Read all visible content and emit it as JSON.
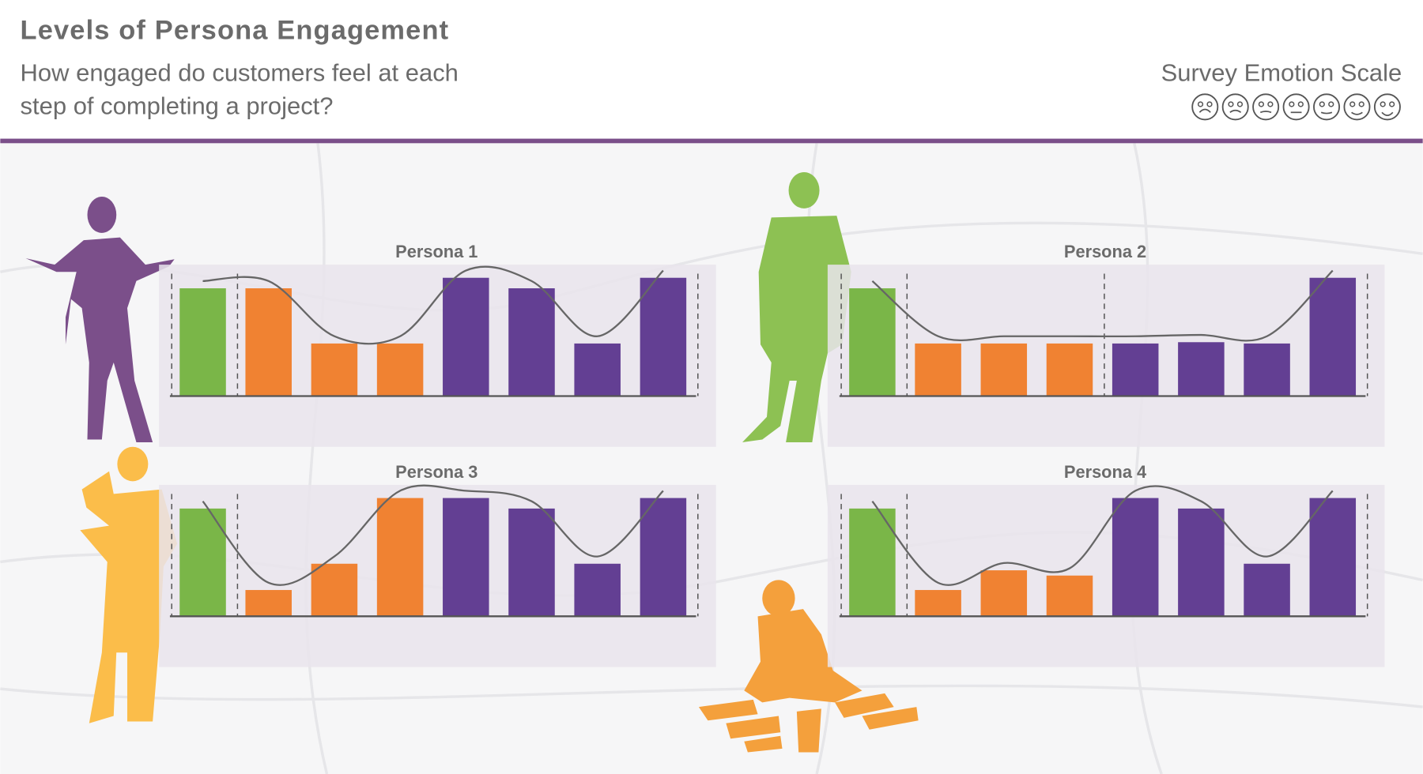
{
  "title": "Levels of Persona Engagement",
  "subtitle": [
    "How engaged do customers feel at each",
    "step of completing a project?"
  ],
  "scale_title": "Survey Emotion Scale",
  "chart_data": [
    {
      "type": "bar",
      "title": "Persona 1",
      "values": [
        8.2,
        8.2,
        4,
        4,
        9,
        8.2,
        4,
        9
      ],
      "colors": [
        "#7ab648",
        "#f08232",
        "#f08232",
        "#f08232",
        "#633f93",
        "#633f93",
        "#633f93",
        "#633f93"
      ],
      "ylim": [
        0,
        10
      ],
      "dividers": [
        0,
        1,
        8
      ]
    },
    {
      "type": "bar",
      "title": "Persona 2",
      "values": [
        8.2,
        4,
        4,
        4,
        4,
        4.1,
        4,
        9
      ],
      "colors": [
        "#7ab648",
        "#f08232",
        "#f08232",
        "#f08232",
        "#633f93",
        "#633f93",
        "#633f93",
        "#633f93"
      ],
      "ylim": [
        0,
        10
      ],
      "dividers": [
        0,
        1,
        4,
        8
      ]
    },
    {
      "type": "bar",
      "title": "Persona 3",
      "values": [
        8.2,
        2,
        4,
        9,
        9,
        8.2,
        4,
        9
      ],
      "colors": [
        "#7ab648",
        "#f08232",
        "#f08232",
        "#f08232",
        "#633f93",
        "#633f93",
        "#633f93",
        "#633f93"
      ],
      "ylim": [
        0,
        10
      ],
      "dividers": [
        0,
        1,
        8
      ]
    },
    {
      "type": "bar",
      "title": "Persona 4",
      "values": [
        8.2,
        2,
        3.5,
        3.1,
        9,
        8.2,
        4,
        9
      ],
      "colors": [
        "#7ab648",
        "#f08232",
        "#f08232",
        "#f08232",
        "#633f93",
        "#633f93",
        "#633f93",
        "#633f93"
      ],
      "ylim": [
        0,
        10
      ],
      "dividers": [
        0,
        1,
        8
      ]
    }
  ]
}
